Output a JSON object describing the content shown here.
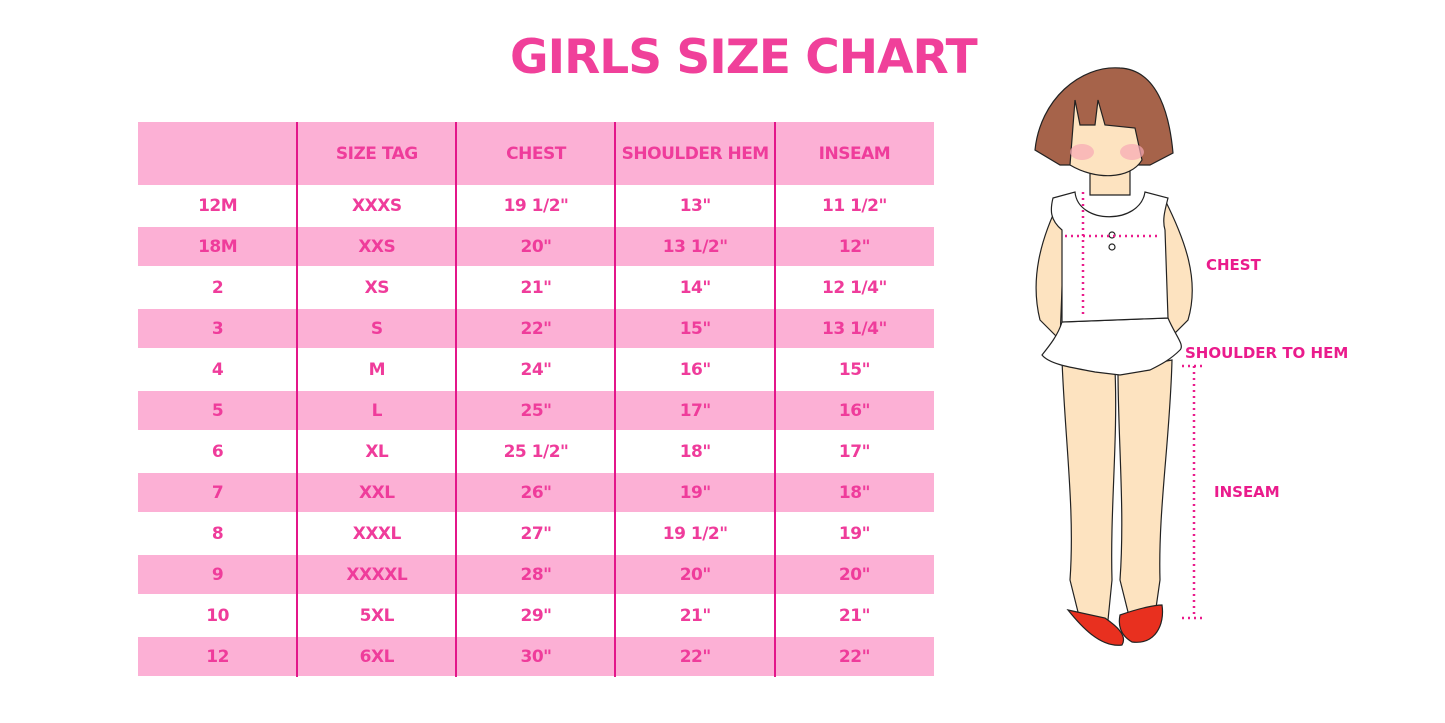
{
  "title": "GIRLS SIZE CHART",
  "table": {
    "headers": [
      "",
      "SIZE TAG",
      "CHEST",
      "SHOULDER HEM",
      "INSEAM"
    ],
    "rows": [
      [
        "12M",
        "XXXS",
        "19 1/2\"",
        "13\"",
        "11 1/2\""
      ],
      [
        "18M",
        "XXS",
        "20\"",
        "13 1/2\"",
        "12\""
      ],
      [
        "2",
        "XS",
        "21\"",
        "14\"",
        "12 1/4\""
      ],
      [
        "3",
        "S",
        "22\"",
        "15\"",
        "13 1/4\""
      ],
      [
        "4",
        "M",
        "24\"",
        "16\"",
        "15\""
      ],
      [
        "5",
        "L",
        "25\"",
        "17\"",
        "16\""
      ],
      [
        "6",
        "XL",
        "25 1/2\"",
        "18\"",
        "17\""
      ],
      [
        "7",
        "XXL",
        "26\"",
        "19\"",
        "18\""
      ],
      [
        "8",
        "XXXL",
        "27\"",
        "19 1/2\"",
        "19\""
      ],
      [
        "9",
        "XXXXL",
        "28\"",
        "20\"",
        "20\""
      ],
      [
        "10",
        "5XL",
        "29\"",
        "21\"",
        "21\""
      ],
      [
        "12",
        "6XL",
        "30\"",
        "22\"",
        "22\""
      ]
    ]
  },
  "figure": {
    "labels": {
      "chest": "CHEST",
      "shoulder": "SHOULDER TO HEM",
      "inseam": "INSEAM"
    }
  },
  "colors": {
    "title": "#f0409a",
    "row_pink": "#fcb0d5",
    "text": "#ef3c9b",
    "divider": "#e3168a"
  }
}
